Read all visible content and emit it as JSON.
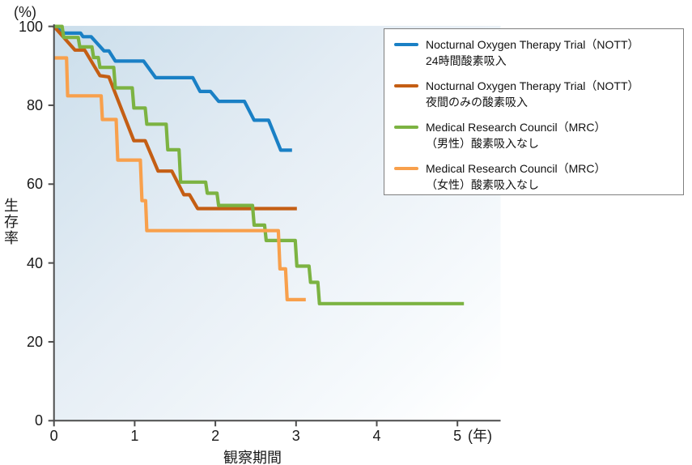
{
  "figure": {
    "kind": "kaplan-meier-survival-curves",
    "background_note": "plot area has a diagonal light-blue to white gradient"
  },
  "axes": {
    "y": {
      "unit": "(%)",
      "title": "生存率",
      "tick_values": [
        0,
        20,
        40,
        60,
        80,
        100
      ],
      "tick_labels": [
        "0",
        "20",
        "40",
        "60",
        "80",
        "100"
      ],
      "range": [
        0,
        100
      ]
    },
    "x": {
      "unit": "(年)",
      "title": "観察期間",
      "tick_values": [
        0,
        1,
        2,
        3,
        4,
        5
      ],
      "tick_labels": [
        "0",
        "1",
        "2",
        "3",
        "4",
        "5"
      ],
      "range": [
        0,
        5.5
      ]
    }
  },
  "legend": {
    "position": "top-right",
    "items": [
      {
        "line1": "Nocturnal Oxygen Therapy Trial（NOTT）",
        "line2": "24時間酸素吸入",
        "color": "#1a80c5"
      },
      {
        "line1": "Nocturnal Oxygen Therapy Trial（NOTT）",
        "line2": "夜間のみの酸素吸入",
        "color": "#c45e14"
      },
      {
        "line1": "Medical Research Council（MRC）",
        "line2": "（男性）酸素吸入なし",
        "color": "#7cb342"
      },
      {
        "line1": "Medical Research Council（MRC）",
        "line2": "（女性）酸素吸入なし",
        "color": "#f8a04c"
      }
    ]
  },
  "colors": {
    "axis": "#4d4d4d",
    "plot_gradient_start": "#cbdeeb",
    "plot_gradient_mid": "#e6eef5",
    "plot_gradient_end": "#ffffff",
    "legend_border": "#7f7f7f",
    "legend_background": "#ffffff"
  },
  "chart_data": {
    "type": "line",
    "subtype": "survival-step-curves",
    "title": "",
    "xlabel": "観察期間（年）",
    "ylabel": "生存率（%）",
    "xlim": [
      0,
      5.5
    ],
    "ylim": [
      0,
      100
    ],
    "grid": false,
    "legend_position": "top-right",
    "series": [
      {
        "id": "nott-continuous",
        "name": "Nocturnal Oxygen Therapy Trial（NOTT） 24時間酸素吸入",
        "color": "#1a80c5",
        "points": [
          [
            0,
            100
          ],
          [
            0.13,
            98.3
          ],
          [
            0.33,
            98.3
          ],
          [
            0.36,
            97.4
          ],
          [
            0.46,
            97.4
          ],
          [
            0.62,
            93.8
          ],
          [
            0.68,
            93.8
          ],
          [
            0.76,
            91.2
          ],
          [
            1.11,
            91.2
          ],
          [
            1.26,
            87
          ],
          [
            1.72,
            87
          ],
          [
            1.81,
            83.5
          ],
          [
            1.94,
            83.5
          ],
          [
            2.04,
            81
          ],
          [
            2.36,
            81
          ],
          [
            2.48,
            76.2
          ],
          [
            2.66,
            76.2
          ],
          [
            2.81,
            68.6
          ],
          [
            2.95,
            68.6
          ]
        ]
      },
      {
        "id": "nott-nocturnal",
        "name": "Nocturnal Oxygen Therapy Trial（NOTT） 夜間のみの酸素吸入",
        "color": "#c45e14",
        "points": [
          [
            0,
            100
          ],
          [
            0.26,
            94
          ],
          [
            0.38,
            94
          ],
          [
            0.57,
            87.5
          ],
          [
            0.68,
            87.2
          ],
          [
            0.99,
            71
          ],
          [
            1.13,
            71
          ],
          [
            1.29,
            63.3
          ],
          [
            1.46,
            63.3
          ],
          [
            1.61,
            57.3
          ],
          [
            1.68,
            57.3
          ],
          [
            1.78,
            53.8
          ],
          [
            3.01,
            53.8
          ]
        ]
      },
      {
        "id": "mrc-male",
        "name": "Medical Research Council（MRC）（男性）酸素吸入なし",
        "color": "#7cb342",
        "points": [
          [
            0,
            100
          ],
          [
            0.1,
            100
          ],
          [
            0.12,
            97.2
          ],
          [
            0.3,
            97.2
          ],
          [
            0.32,
            94.8
          ],
          [
            0.47,
            94.8
          ],
          [
            0.49,
            92.1
          ],
          [
            0.55,
            92.1
          ],
          [
            0.57,
            89.6
          ],
          [
            0.74,
            89.6
          ],
          [
            0.76,
            84.4
          ],
          [
            0.97,
            84.4
          ],
          [
            0.99,
            79.3
          ],
          [
            1.13,
            79.3
          ],
          [
            1.15,
            75.2
          ],
          [
            1.39,
            75.2
          ],
          [
            1.41,
            68.7
          ],
          [
            1.55,
            68.7
          ],
          [
            1.57,
            60.5
          ],
          [
            1.88,
            60.5
          ],
          [
            1.9,
            57.7
          ],
          [
            2.02,
            57.7
          ],
          [
            2.04,
            54.6
          ],
          [
            2.46,
            54.6
          ],
          [
            2.48,
            49.6
          ],
          [
            2.61,
            49.6
          ],
          [
            2.63,
            45.7
          ],
          [
            2.99,
            45.7
          ],
          [
            3.01,
            39.2
          ],
          [
            3.16,
            39.2
          ],
          [
            3.18,
            35.1
          ],
          [
            3.27,
            35.1
          ],
          [
            3.29,
            29.7
          ],
          [
            5.08,
            29.7
          ]
        ]
      },
      {
        "id": "mrc-female",
        "name": "Medical Research Council（MRC）（女性）酸素吸入なし",
        "color": "#f8a04c",
        "points": [
          [
            0,
            92
          ],
          [
            0.155,
            92
          ],
          [
            0.17,
            82.4
          ],
          [
            0.585,
            82.4
          ],
          [
            0.6,
            76.4
          ],
          [
            0.77,
            76.4
          ],
          [
            0.79,
            66.1
          ],
          [
            1.07,
            66.1
          ],
          [
            1.09,
            55.8
          ],
          [
            1.135,
            55.8
          ],
          [
            1.15,
            48.2
          ],
          [
            2.78,
            48.2
          ],
          [
            2.8,
            38.5
          ],
          [
            2.87,
            38.5
          ],
          [
            2.89,
            30.7
          ],
          [
            3.12,
            30.7
          ]
        ]
      }
    ]
  }
}
